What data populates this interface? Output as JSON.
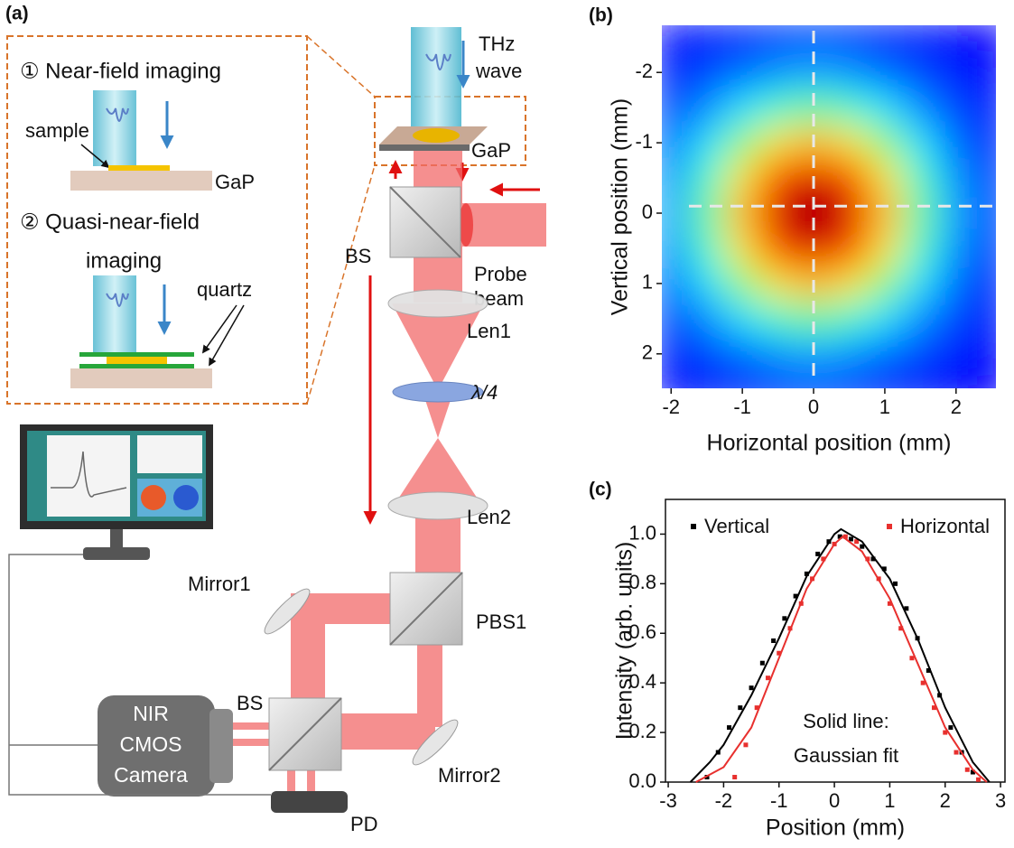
{
  "diagram": {
    "label": "(a)",
    "inset": {
      "near_field": "① Near-field imaging",
      "sample": "sample",
      "gap": "GaP",
      "quasi_1": "② Quasi-near-field",
      "quasi_2": "imaging",
      "quartz": "quartz"
    },
    "thz_1": "THz",
    "thz_2": "wave",
    "gap": "GaP",
    "probe_1": "Probe",
    "probe_2": "beam",
    "bs1": "BS",
    "len1": "Len1",
    "qwp": "λ/4",
    "len2": "Len2",
    "mirror1": "Mirror1",
    "pbs1": "PBS1",
    "mirror2": "Mirror2",
    "bs2": "BS",
    "camera": [
      "NIR",
      "CMOS",
      "Camera"
    ],
    "pd": "PD"
  },
  "chart_data": [
    {
      "type": "heatmap",
      "label": "(b)",
      "xlabel": "Horizontal position (mm)",
      "ylabel": "Vertical position (mm)",
      "colormap": "jet",
      "x": [
        -2,
        -1.5,
        -1,
        -0.5,
        0,
        0.5,
        1,
        1.5,
        2,
        2.5
      ],
      "y": [
        -2.5,
        -2,
        -1.5,
        -1,
        -0.5,
        0,
        0.5,
        1,
        1.5,
        2,
        2.5
      ],
      "z": [
        [
          0.13,
          0.15,
          0.16,
          0.18,
          0.19,
          0.18,
          0.16,
          0.15,
          0.13,
          0.13
        ],
        [
          0.15,
          0.19,
          0.23,
          0.27,
          0.29,
          0.27,
          0.23,
          0.19,
          0.15,
          0.13
        ],
        [
          0.19,
          0.26,
          0.35,
          0.43,
          0.47,
          0.43,
          0.35,
          0.26,
          0.19,
          0.15
        ],
        [
          0.23,
          0.35,
          0.51,
          0.65,
          0.7,
          0.65,
          0.51,
          0.35,
          0.23,
          0.16
        ],
        [
          0.27,
          0.43,
          0.65,
          0.84,
          0.91,
          0.84,
          0.65,
          0.43,
          0.27,
          0.18
        ],
        [
          0.29,
          0.47,
          0.7,
          0.91,
          1.0,
          0.91,
          0.7,
          0.47,
          0.29,
          0.19
        ],
        [
          0.27,
          0.43,
          0.65,
          0.84,
          0.91,
          0.84,
          0.65,
          0.43,
          0.27,
          0.18
        ],
        [
          0.23,
          0.35,
          0.51,
          0.65,
          0.7,
          0.65,
          0.51,
          0.35,
          0.23,
          0.16
        ],
        [
          0.19,
          0.26,
          0.35,
          0.43,
          0.47,
          0.43,
          0.35,
          0.26,
          0.19,
          0.15
        ],
        [
          0.15,
          0.19,
          0.23,
          0.27,
          0.29,
          0.27,
          0.23,
          0.19,
          0.15,
          0.13
        ],
        [
          0.13,
          0.15,
          0.16,
          0.18,
          0.19,
          0.18,
          0.16,
          0.15,
          0.13,
          0.13
        ]
      ],
      "xlim": [
        -2.13,
        2.56
      ],
      "ylim": [
        2.49,
        -2.67
      ],
      "xticks": [
        -2,
        -1,
        0,
        1,
        2
      ],
      "yticks": [
        -2,
        -1,
        0,
        1,
        2
      ],
      "crosshair": {
        "x": 0,
        "y": -0.1
      }
    },
    {
      "type": "scatter",
      "label": "(c)",
      "xlabel": "Position (mm)",
      "ylabel": "Intensity (arb. units)",
      "xlim": [
        -3.05,
        3.08
      ],
      "ylim": [
        0,
        1.14
      ],
      "xticks": [
        -3,
        -2,
        -1,
        0,
        1,
        2,
        3
      ],
      "yticks": [
        {
          "value": 0,
          "label": "0.0"
        },
        0.2,
        0.4,
        0.6,
        0.8,
        {
          "value": 1,
          "label": "1.0"
        }
      ],
      "annotation": [
        "Solid line:",
        "Gaussian fit"
      ],
      "series": [
        {
          "name": "Vertical",
          "color": "#000000",
          "mode": "markers",
          "x": [
            -2.3,
            -2.1,
            -1.9,
            -1.7,
            -1.5,
            -1.3,
            -1.1,
            -0.9,
            -0.7,
            -0.5,
            -0.3,
            -0.1,
            0.1,
            0.3,
            0.5,
            0.7,
            0.9,
            1.1,
            1.3,
            1.5,
            1.7,
            1.9,
            2.1,
            2.3,
            2.5
          ],
          "values": [
            0.02,
            0.12,
            0.22,
            0.3,
            0.38,
            0.48,
            0.57,
            0.66,
            0.75,
            0.84,
            0.92,
            0.97,
            0.99,
            0.98,
            0.95,
            0.9,
            0.86,
            0.8,
            0.7,
            0.58,
            0.45,
            0.35,
            0.22,
            0.12,
            0.04
          ]
        },
        {
          "name": "Horizontal",
          "color": "#e8302e",
          "mode": "markers",
          "x": [
            -1.8,
            -1.6,
            -1.4,
            -1.2,
            -1.0,
            -0.8,
            -0.6,
            -0.4,
            -0.2,
            0,
            0.2,
            0.4,
            0.6,
            0.8,
            1.0,
            1.2,
            1.4,
            1.6,
            1.8,
            2.0,
            2.2,
            2.4,
            2.6
          ],
          "values": [
            0.02,
            0.15,
            0.3,
            0.42,
            0.52,
            0.62,
            0.72,
            0.82,
            0.9,
            0.96,
            0.99,
            0.97,
            0.9,
            0.82,
            0.72,
            0.62,
            0.5,
            0.4,
            0.3,
            0.2,
            0.12,
            0.05,
            0.01
          ]
        },
        {
          "color": "#000000",
          "mode": "line",
          "x": [
            -2.6,
            -2.25,
            -2,
            -1.5,
            -1,
            -0.5,
            0,
            0.12,
            0.5,
            1,
            1.5,
            2,
            2.5,
            2.8
          ],
          "values": [
            0,
            0.08,
            0.15,
            0.35,
            0.58,
            0.83,
            1.0,
            1.02,
            0.97,
            0.82,
            0.58,
            0.3,
            0.08,
            0
          ]
        },
        {
          "color": "#e8302e",
          "mode": "line",
          "x": [
            -2.5,
            -2,
            -1.5,
            -1,
            -0.5,
            0,
            0.15,
            0.5,
            1,
            1.5,
            2,
            2.5,
            2.75
          ],
          "values": [
            0,
            0.06,
            0.22,
            0.5,
            0.78,
            0.96,
            0.99,
            0.93,
            0.74,
            0.48,
            0.22,
            0.05,
            0
          ]
        }
      ]
    }
  ]
}
